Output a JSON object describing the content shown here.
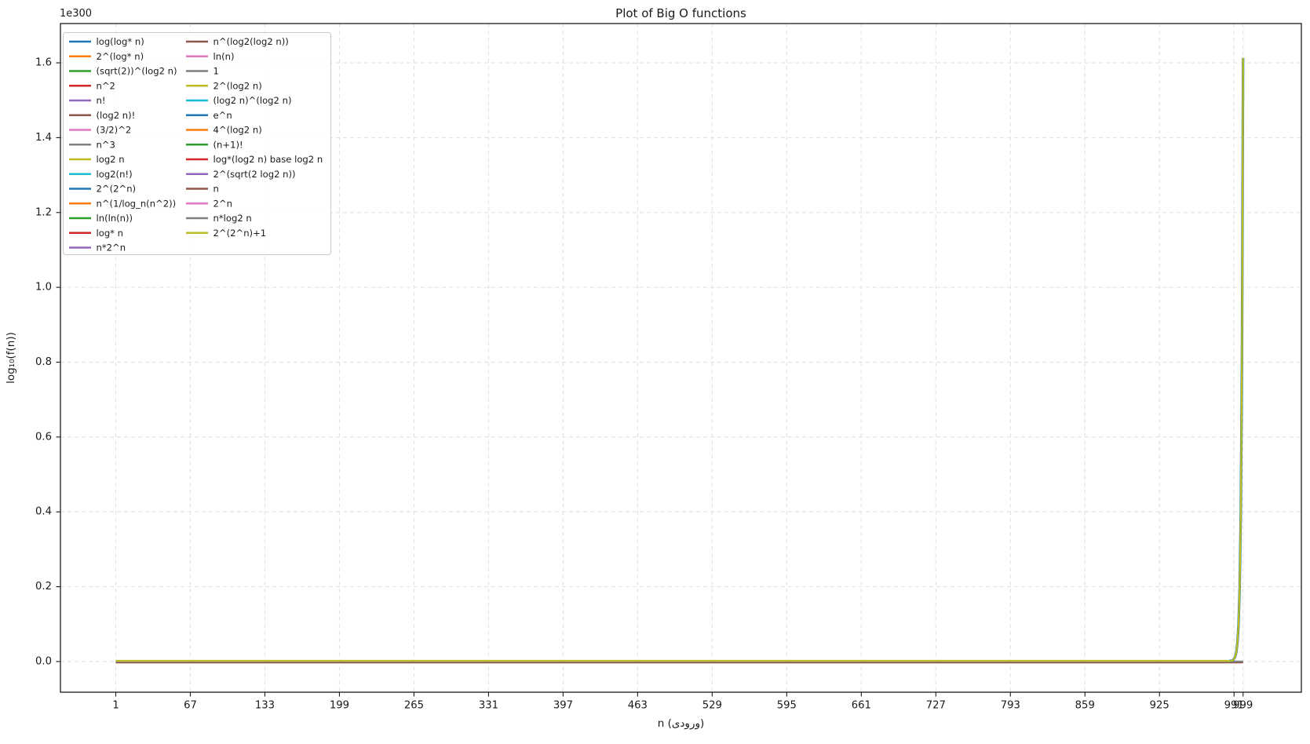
{
  "chart_data": {
    "type": "line",
    "title": "Plot of Big O functions",
    "xlabel": "n (ورودی)",
    "ylabel": "log₁₀(f(n))",
    "y_scale_offset": "1e300",
    "grid": true,
    "legend": {
      "position": "upper left",
      "columns": 2,
      "column1_rows": 15,
      "column2_rows": 14
    },
    "x_ticks": [
      1,
      67,
      133,
      199,
      265,
      331,
      397,
      463,
      529,
      595,
      661,
      727,
      793,
      859,
      925,
      991,
      999
    ],
    "y_tick_labels": [
      "0.0",
      "0.2",
      "0.4",
      "0.6",
      "0.8",
      "1.0",
      "1.2",
      "1.4",
      "1.6"
    ],
    "x_range": [
      -48,
      1050.6
    ],
    "y_range_e300": [
      -0.082,
      1.705
    ],
    "x_data_range": [
      1,
      999
    ],
    "flat_value_e300": 0,
    "peak_note": "all series ≈0 on the 1e300 scale except 2^(2^n) and 2^(2^n)+1, which reach ≈1.613e300 at n=999",
    "spike_points_e300": [
      [
        986,
        0.0007
      ],
      [
        990,
        0.003
      ],
      [
        992,
        0.0126
      ],
      [
        993,
        0.025
      ],
      [
        994,
        0.05
      ],
      [
        995,
        0.1
      ],
      [
        996,
        0.2
      ],
      [
        997,
        0.4
      ],
      [
        998,
        0.806
      ],
      [
        999,
        1.613
      ]
    ],
    "palette": {
      "blue": "#1f77b4",
      "orange": "#ff7f0e",
      "green": "#2ca02c",
      "red": "#d62728",
      "purple": "#9467bd",
      "brown": "#8c564b",
      "pink": "#e377c2",
      "gray": "#7f7f7f",
      "olive": "#bcbd22",
      "cyan": "#17becf",
      "grid": "#e2e2e2",
      "spine": "#1a1a1a",
      "text": "#1a1a1a",
      "legend_border": "#c9c9c9",
      "legend_bg": "#ffffff"
    },
    "series": [
      {
        "label": "log(log* n)",
        "color": "#1f77b4",
        "shape": "flat"
      },
      {
        "label": "2^(log* n)",
        "color": "#ff7f0e",
        "shape": "flat"
      },
      {
        "label": "(sqrt(2))^(log2 n)",
        "color": "#2ca02c",
        "shape": "flat"
      },
      {
        "label": "n^2",
        "color": "#d62728",
        "shape": "flat"
      },
      {
        "label": "n!",
        "color": "#9467bd",
        "shape": "flat"
      },
      {
        "label": "(log2 n)!",
        "color": "#8c564b",
        "shape": "flat"
      },
      {
        "label": "(3/2)^2",
        "color": "#e377c2",
        "shape": "flat"
      },
      {
        "label": "n^3",
        "color": "#7f7f7f",
        "shape": "flat"
      },
      {
        "label": "log2 n",
        "color": "#bcbd22",
        "shape": "flat"
      },
      {
        "label": "log2(n!)",
        "color": "#17becf",
        "shape": "flat"
      },
      {
        "label": "2^(2^n)",
        "color": "#1f77b4",
        "shape": "spike"
      },
      {
        "label": "n^(1/log_n(n^2))",
        "color": "#ff7f0e",
        "shape": "flat"
      },
      {
        "label": "ln(ln(n))",
        "color": "#2ca02c",
        "shape": "flat"
      },
      {
        "label": "log* n",
        "color": "#d62728",
        "shape": "flat"
      },
      {
        "label": "n*2^n",
        "color": "#9467bd",
        "shape": "flat"
      },
      {
        "label": "n^(log2(log2 n))",
        "color": "#8c564b",
        "shape": "flat"
      },
      {
        "label": "ln(n)",
        "color": "#e377c2",
        "shape": "flat"
      },
      {
        "label": "1",
        "color": "#7f7f7f",
        "shape": "flat"
      },
      {
        "label": "2^(log2 n)",
        "color": "#bcbd22",
        "shape": "flat"
      },
      {
        "label": "(log2 n)^(log2 n)",
        "color": "#17becf",
        "shape": "flat"
      },
      {
        "label": "e^n",
        "color": "#1f77b4",
        "shape": "flat"
      },
      {
        "label": "4^(log2 n)",
        "color": "#ff7f0e",
        "shape": "flat"
      },
      {
        "label": "(n+1)!",
        "color": "#2ca02c",
        "shape": "flat"
      },
      {
        "label": "log*(log2 n) base log2 n",
        "color": "#d62728",
        "shape": "flat"
      },
      {
        "label": "2^(sqrt(2 log2 n))",
        "color": "#9467bd",
        "shape": "flat"
      },
      {
        "label": "n",
        "color": "#8c564b",
        "shape": "flat"
      },
      {
        "label": "2^n",
        "color": "#e377c2",
        "shape": "flat"
      },
      {
        "label": "n*log2 n",
        "color": "#7f7f7f",
        "shape": "flat"
      },
      {
        "label": "2^(2^n)+1",
        "color": "#bcbd22",
        "shape": "spike"
      }
    ]
  }
}
